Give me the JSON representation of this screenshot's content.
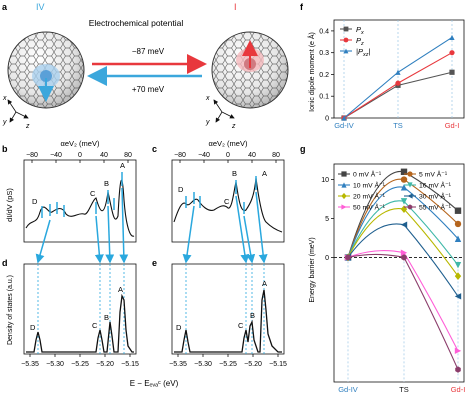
{
  "panels": {
    "a": {
      "letter": "a",
      "label_left": "IV",
      "label_right": "I",
      "title": "Electrochemical potential",
      "arrow_top": "−87 meV",
      "arrow_bottom": "+70 meV",
      "axes": {
        "x": "x",
        "y": "y",
        "z": "z"
      },
      "colors": {
        "forward": "#e8383d",
        "backward": "#3ba7dc"
      }
    },
    "b": {
      "letter": "b",
      "top_axis_label": "αeV₂ (meV)",
      "top_ticks": [
        "−80",
        "−40",
        "0",
        "40",
        "80"
      ],
      "ylabel": "dI/dV (pS)",
      "peaks": [
        "D",
        "C",
        "B",
        "A"
      ]
    },
    "c": {
      "letter": "c",
      "top_axis_label": "αeV₂ (meV)",
      "top_ticks": [
        "−80",
        "−40",
        "0",
        "40",
        "80"
      ],
      "peaks": [
        "D",
        "C",
        "B",
        "A"
      ]
    },
    "d": {
      "letter": "d",
      "ylabel": "Density of states (a.u.)",
      "peaks": [
        "D",
        "C",
        "B",
        "A"
      ],
      "xticks": [
        "−5.35",
        "−5.30",
        "−5.25",
        "−5.20",
        "−5.15"
      ]
    },
    "e": {
      "letter": "e",
      "peaks": [
        "D",
        "C",
        "B",
        "A"
      ],
      "xticks": [
        "−5.35",
        "−5.30",
        "−5.25",
        "−5.20",
        "−5.15"
      ]
    },
    "de_xlabel": "E − Eₑᵥₐᶜ (eV)",
    "f": {
      "letter": "f",
      "ylabel": "Ionic dipole moment (e Å)",
      "yticks": [
        "0",
        "0.1",
        "0.2",
        "0.3",
        "0.4"
      ],
      "categories": [
        "Gd-IV",
        "TS",
        "Gd-I"
      ],
      "category_colors": [
        "#2f7fbf",
        "#2f7fbf",
        "#e8383d"
      ]
    },
    "g": {
      "letter": "g",
      "ylabel": "Energy barrier (meV)",
      "yticks": [
        "0",
        "5",
        "10"
      ],
      "categories": [
        "Gd-IV",
        "TS",
        "Gd-I"
      ],
      "category_colors": [
        "#2f7fbf",
        "#111111",
        "#e8383d"
      ]
    }
  },
  "chart_data": [
    {
      "panel": "f",
      "type": "line",
      "categories": [
        "Gd-IV",
        "TS",
        "Gd-I"
      ],
      "ylabel": "Ionic dipole moment (e Å)",
      "ylim": [
        0,
        0.45
      ],
      "series": [
        {
          "name": "Px",
          "label_main": "P",
          "label_sub": "x",
          "color": "#555555",
          "marker": "square",
          "values": [
            0,
            0.15,
            0.21
          ]
        },
        {
          "name": "Pz",
          "label_main": "P",
          "label_sub": "z",
          "color": "#e8383d",
          "marker": "circle",
          "values": [
            0,
            0.16,
            0.3
          ]
        },
        {
          "name": "|Pxz|",
          "label_main": "|P",
          "label_sub": "xz",
          "label_tail": "|",
          "color": "#2f7fbf",
          "marker": "triangle",
          "values": [
            0,
            0.21,
            0.37
          ]
        }
      ]
    },
    {
      "panel": "g",
      "type": "line",
      "categories": [
        "Gd-IV",
        "TS",
        "Gd-I"
      ],
      "ylabel": "Energy barrier (meV)",
      "ylim": [
        -16,
        12
      ],
      "series": [
        {
          "name": "0 mV Å⁻¹",
          "color": "#444444",
          "marker": "square",
          "values": [
            0,
            11.0,
            6.0
          ]
        },
        {
          "name": "5 mV Å⁻¹",
          "color": "#b5651d",
          "marker": "circle",
          "values": [
            0,
            10.0,
            4.3
          ]
        },
        {
          "name": "10 mV Å⁻¹",
          "color": "#2f7fbf",
          "marker": "triangle",
          "values": [
            0,
            9.0,
            2.4
          ]
        },
        {
          "name": "16 mV Å⁻¹",
          "color": "#3fb8a8",
          "marker": "triangle-down",
          "values": [
            0,
            7.2,
            -1.0
          ]
        },
        {
          "name": "20 mV Å⁻¹",
          "color": "#b8b800",
          "marker": "diamond",
          "values": [
            0,
            6.2,
            -2.4
          ]
        },
        {
          "name": "30 mV Å⁻¹",
          "color": "#1f5f8f",
          "marker": "triangle-left",
          "values": [
            0,
            4.2,
            -5.0
          ]
        },
        {
          "name": "50 mV Å⁻¹",
          "color": "#ff5fd7",
          "marker": "triangle-right",
          "values": [
            0,
            0.6,
            -12.0
          ]
        },
        {
          "name": "55 mV Å⁻¹",
          "color": "#8b3d6b",
          "marker": "hexagon",
          "values": [
            0,
            0.0,
            -14.4
          ]
        }
      ]
    }
  ]
}
